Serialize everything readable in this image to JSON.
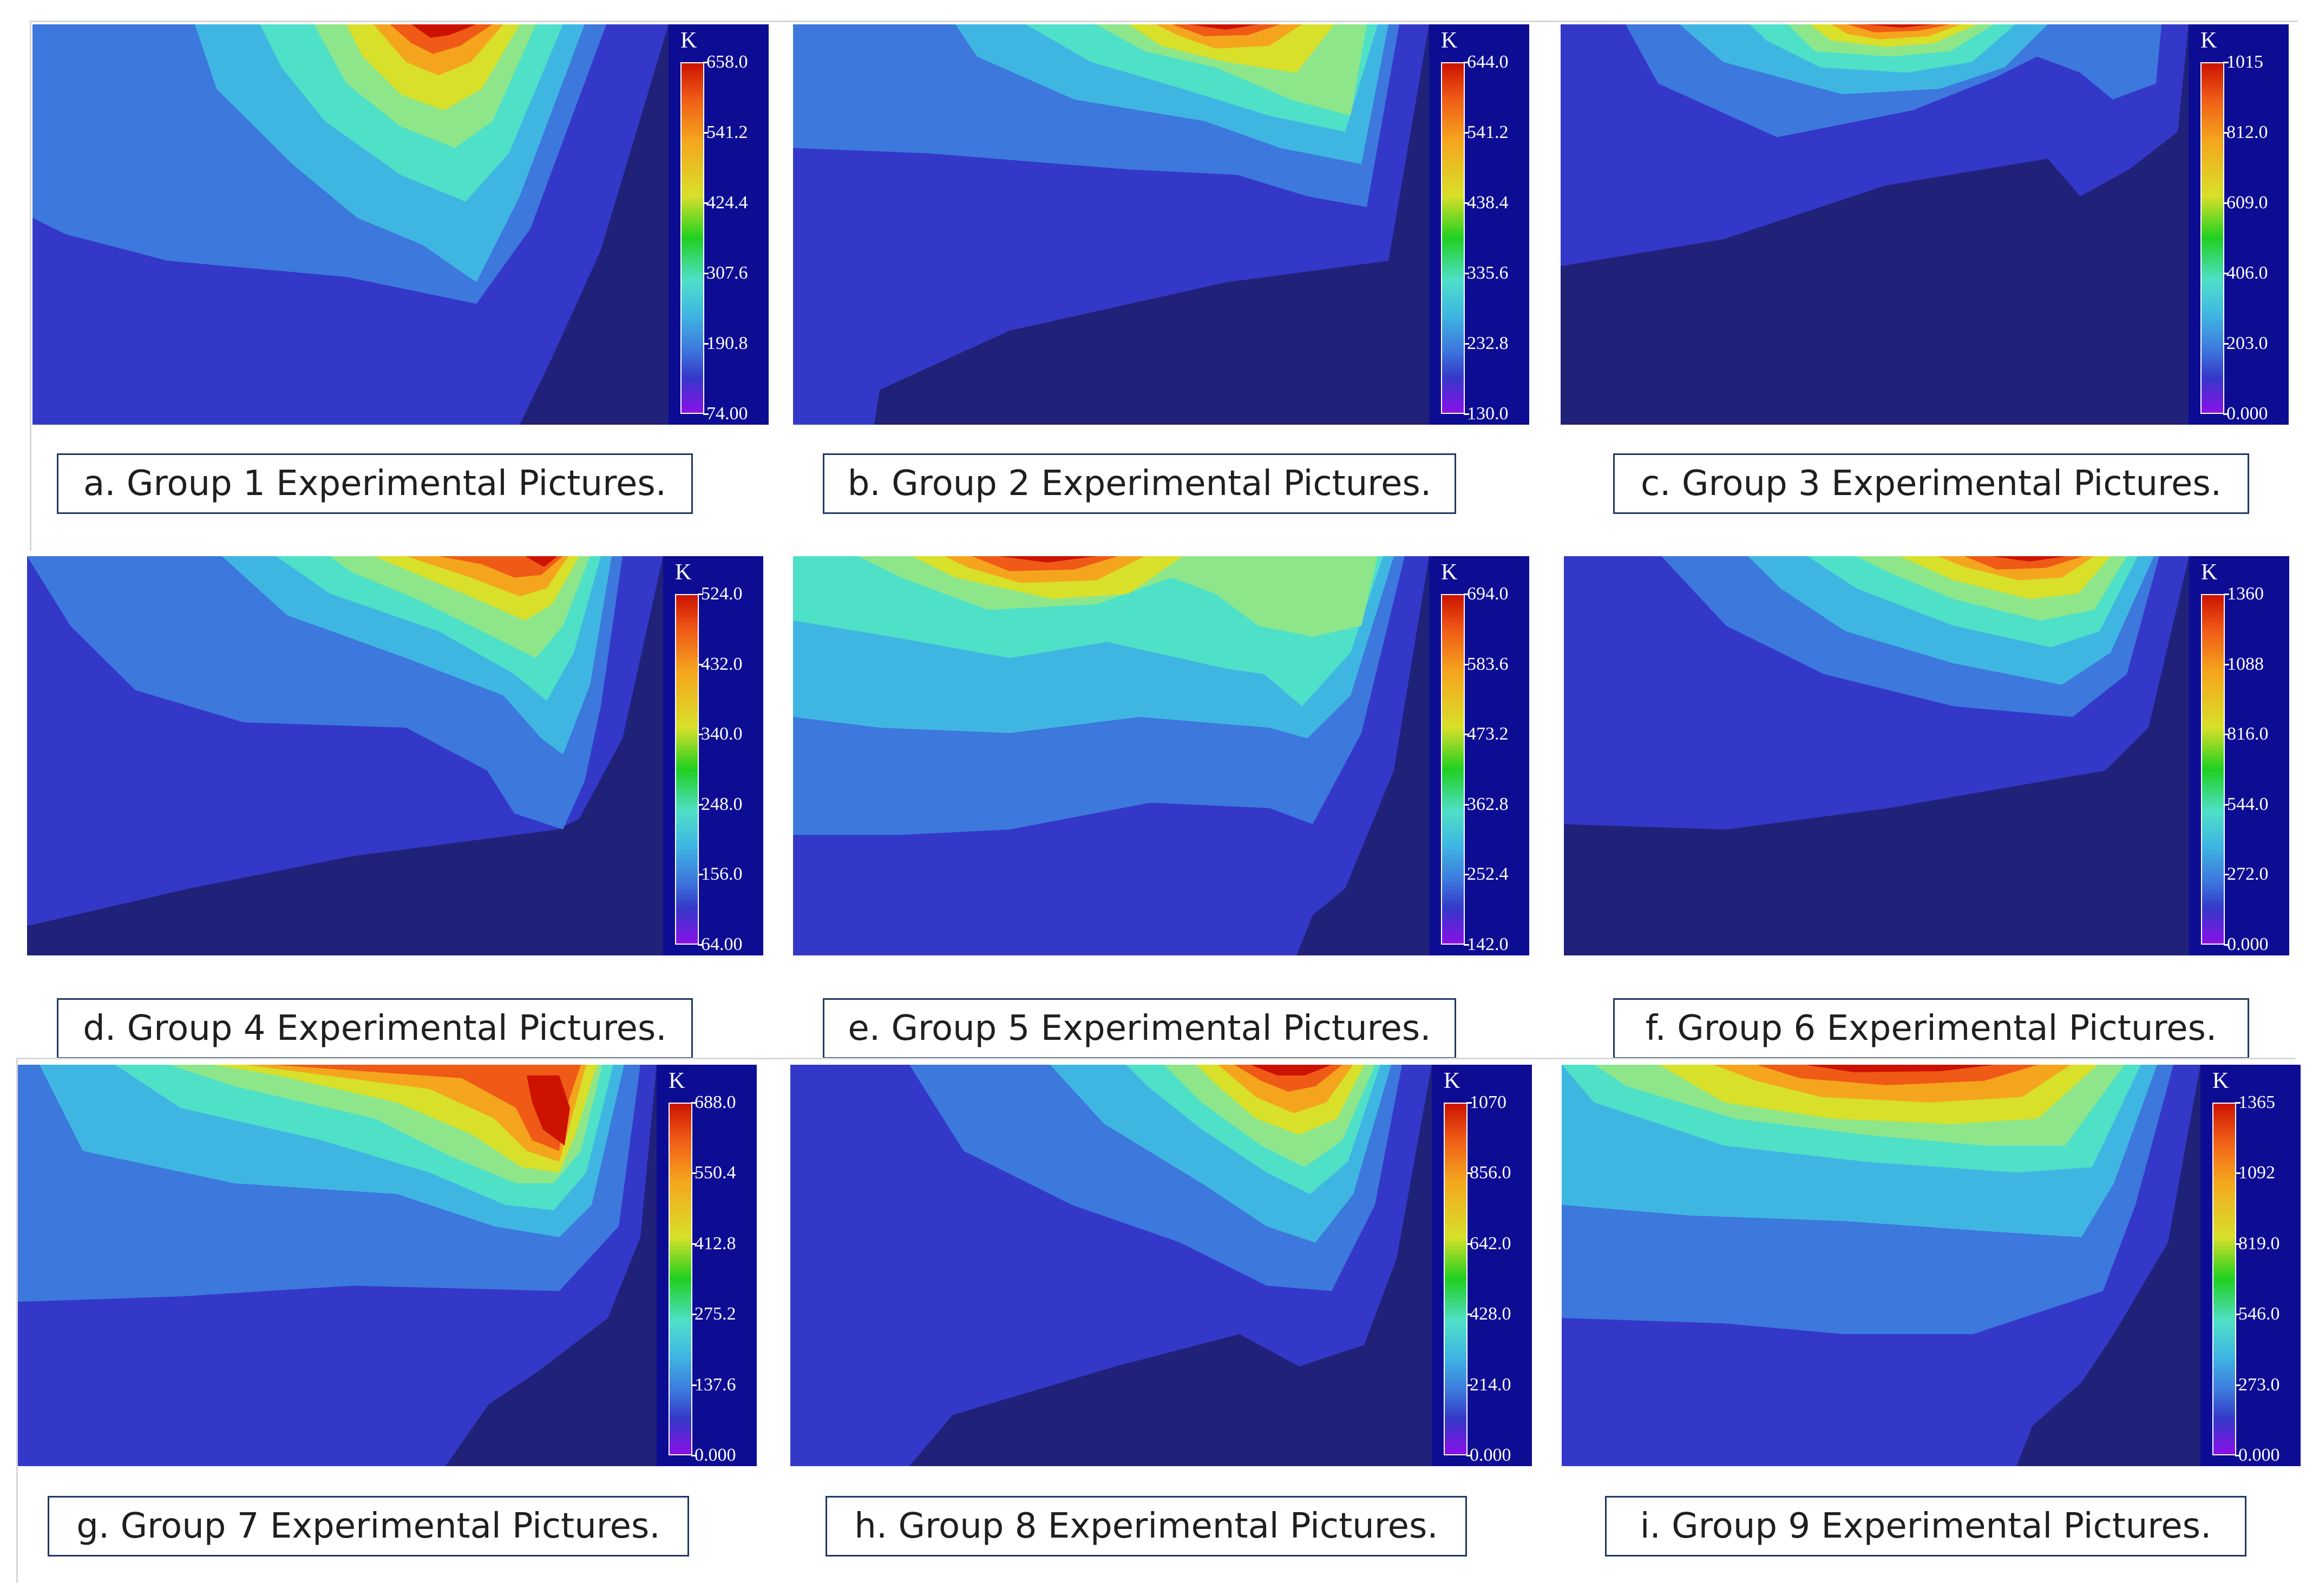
{
  "colors": {
    "band0": "#1f2278",
    "band1": "#3438c8",
    "band2": "#3d78dd",
    "band3": "#3fb6e2",
    "band4": "#4fe0c8",
    "band5": "#8ee68a",
    "band6": "#d8e02a",
    "band7": "#f5a51d",
    "band8": "#ef5a16",
    "band9": "#cc1200",
    "colorbar_background": "#0d0d94",
    "caption_border": "#1f3863"
  },
  "chart_data": [
    {
      "id": "a",
      "type": "heatmap",
      "title": "a. Group 1 Experimental Pictures.",
      "unit": "K",
      "colorbar_ticks": [
        "658.0",
        "541.2",
        "424.4",
        "307.6",
        "190.8",
        "74.00"
      ],
      "colorbar_range": [
        74.0,
        658.0
      ]
    },
    {
      "id": "b",
      "type": "heatmap",
      "title": "b. Group 2 Experimental Pictures.",
      "unit": "K",
      "colorbar_ticks": [
        "644.0",
        "541.2",
        "438.4",
        "335.6",
        "232.8",
        "130.0"
      ],
      "colorbar_range": [
        130.0,
        644.0
      ]
    },
    {
      "id": "c",
      "type": "heatmap",
      "title": "c. Group 3 Experimental Pictures.",
      "unit": "K",
      "colorbar_ticks": [
        "1015",
        "812.0",
        "609.0",
        "406.0",
        "203.0",
        "0.000"
      ],
      "colorbar_range": [
        0.0,
        1015.0
      ]
    },
    {
      "id": "d",
      "type": "heatmap",
      "title": "d. Group 4 Experimental Pictures.",
      "unit": "K",
      "colorbar_ticks": [
        "524.0",
        "432.0",
        "340.0",
        "248.0",
        "156.0",
        "64.00"
      ],
      "colorbar_range": [
        64.0,
        524.0
      ]
    },
    {
      "id": "e",
      "type": "heatmap",
      "title": "e. Group 5 Experimental Pictures.",
      "unit": "K",
      "colorbar_ticks": [
        "694.0",
        "583.6",
        "473.2",
        "362.8",
        "252.4",
        "142.0"
      ],
      "colorbar_range": [
        142.0,
        694.0
      ]
    },
    {
      "id": "f",
      "type": "heatmap",
      "title": "f. Group 6 Experimental Pictures.",
      "unit": "K",
      "colorbar_ticks": [
        "1360",
        "1088",
        "816.0",
        "544.0",
        "272.0",
        "0.000"
      ],
      "colorbar_range": [
        0.0,
        1360.0
      ]
    },
    {
      "id": "g",
      "type": "heatmap",
      "title": "g. Group 7 Experimental Pictures.",
      "unit": "K",
      "colorbar_ticks": [
        "688.0",
        "550.4",
        "412.8",
        "275.2",
        "137.6",
        "0.000"
      ],
      "colorbar_range": [
        0.0,
        688.0
      ]
    },
    {
      "id": "h",
      "type": "heatmap",
      "title": "h. Group 8 Experimental Pictures.",
      "unit": "K",
      "colorbar_ticks": [
        "1070",
        "856.0",
        "642.0",
        "428.0",
        "214.0",
        "0.000"
      ],
      "colorbar_range": [
        0.0,
        1070.0
      ]
    },
    {
      "id": "i",
      "type": "heatmap",
      "title": "i. Group 9 Experimental Pictures.",
      "unit": "K",
      "colorbar_ticks": [
        "1365",
        "1092",
        "819.0",
        "546.0",
        "273.0",
        "0.000"
      ],
      "colorbar_range": [
        0.0,
        1365.0
      ]
    }
  ]
}
